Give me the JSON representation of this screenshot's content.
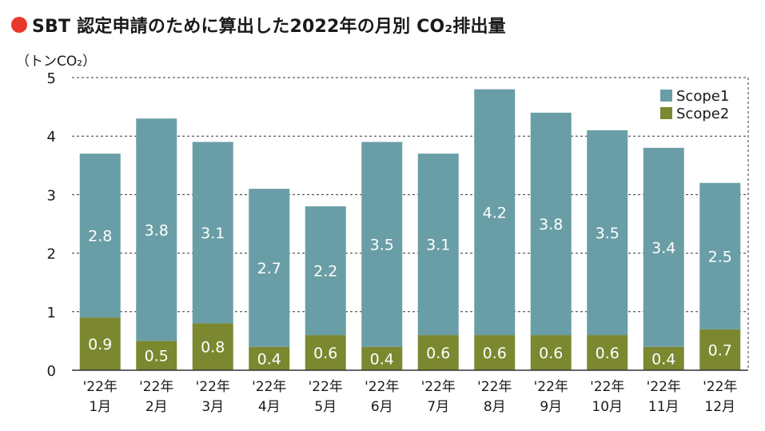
{
  "header": {
    "title": "SBT 認定申請のために算出した2022年の月別 CO₂排出量",
    "unit_label": "（トンCO₂）"
  },
  "colors": {
    "title_dot": "#e8382b",
    "scope1": "#6a9ea6",
    "scope2": "#7b8830",
    "grid": "#333333",
    "axis": "#333333"
  },
  "chart_data": {
    "type": "bar",
    "stacked": true,
    "title": "SBT 認定申請のために算出した2022年の月別 CO₂排出量",
    "ylabel": "（トンCO₂）",
    "xlabel": "",
    "ylim": [
      0,
      5
    ],
    "yticks": [
      0,
      1,
      2,
      3,
      4,
      5
    ],
    "grid": "horizontal dashed",
    "legend_position": "top-right",
    "categories": [
      [
        "'22年",
        "1月"
      ],
      [
        "'22年",
        "2月"
      ],
      [
        "'22年",
        "3月"
      ],
      [
        "'22年",
        "4月"
      ],
      [
        "'22年",
        "5月"
      ],
      [
        "'22年",
        "6月"
      ],
      [
        "'22年",
        "7月"
      ],
      [
        "'22年",
        "8月"
      ],
      [
        "'22年",
        "9月"
      ],
      [
        "'22年",
        "10月"
      ],
      [
        "'22年",
        "11月"
      ],
      [
        "'22年",
        "12月"
      ]
    ],
    "series": [
      {
        "name": "Scope2",
        "color": "#7b8830",
        "values": [
          0.9,
          0.5,
          0.8,
          0.4,
          0.6,
          0.4,
          0.6,
          0.6,
          0.6,
          0.6,
          0.4,
          0.7
        ]
      },
      {
        "name": "Scope1",
        "color": "#6a9ea6",
        "values": [
          2.8,
          3.8,
          3.1,
          2.7,
          2.2,
          3.5,
          3.1,
          4.2,
          3.8,
          3.5,
          3.4,
          2.5
        ]
      }
    ],
    "legend": [
      "Scope1",
      "Scope2"
    ]
  }
}
